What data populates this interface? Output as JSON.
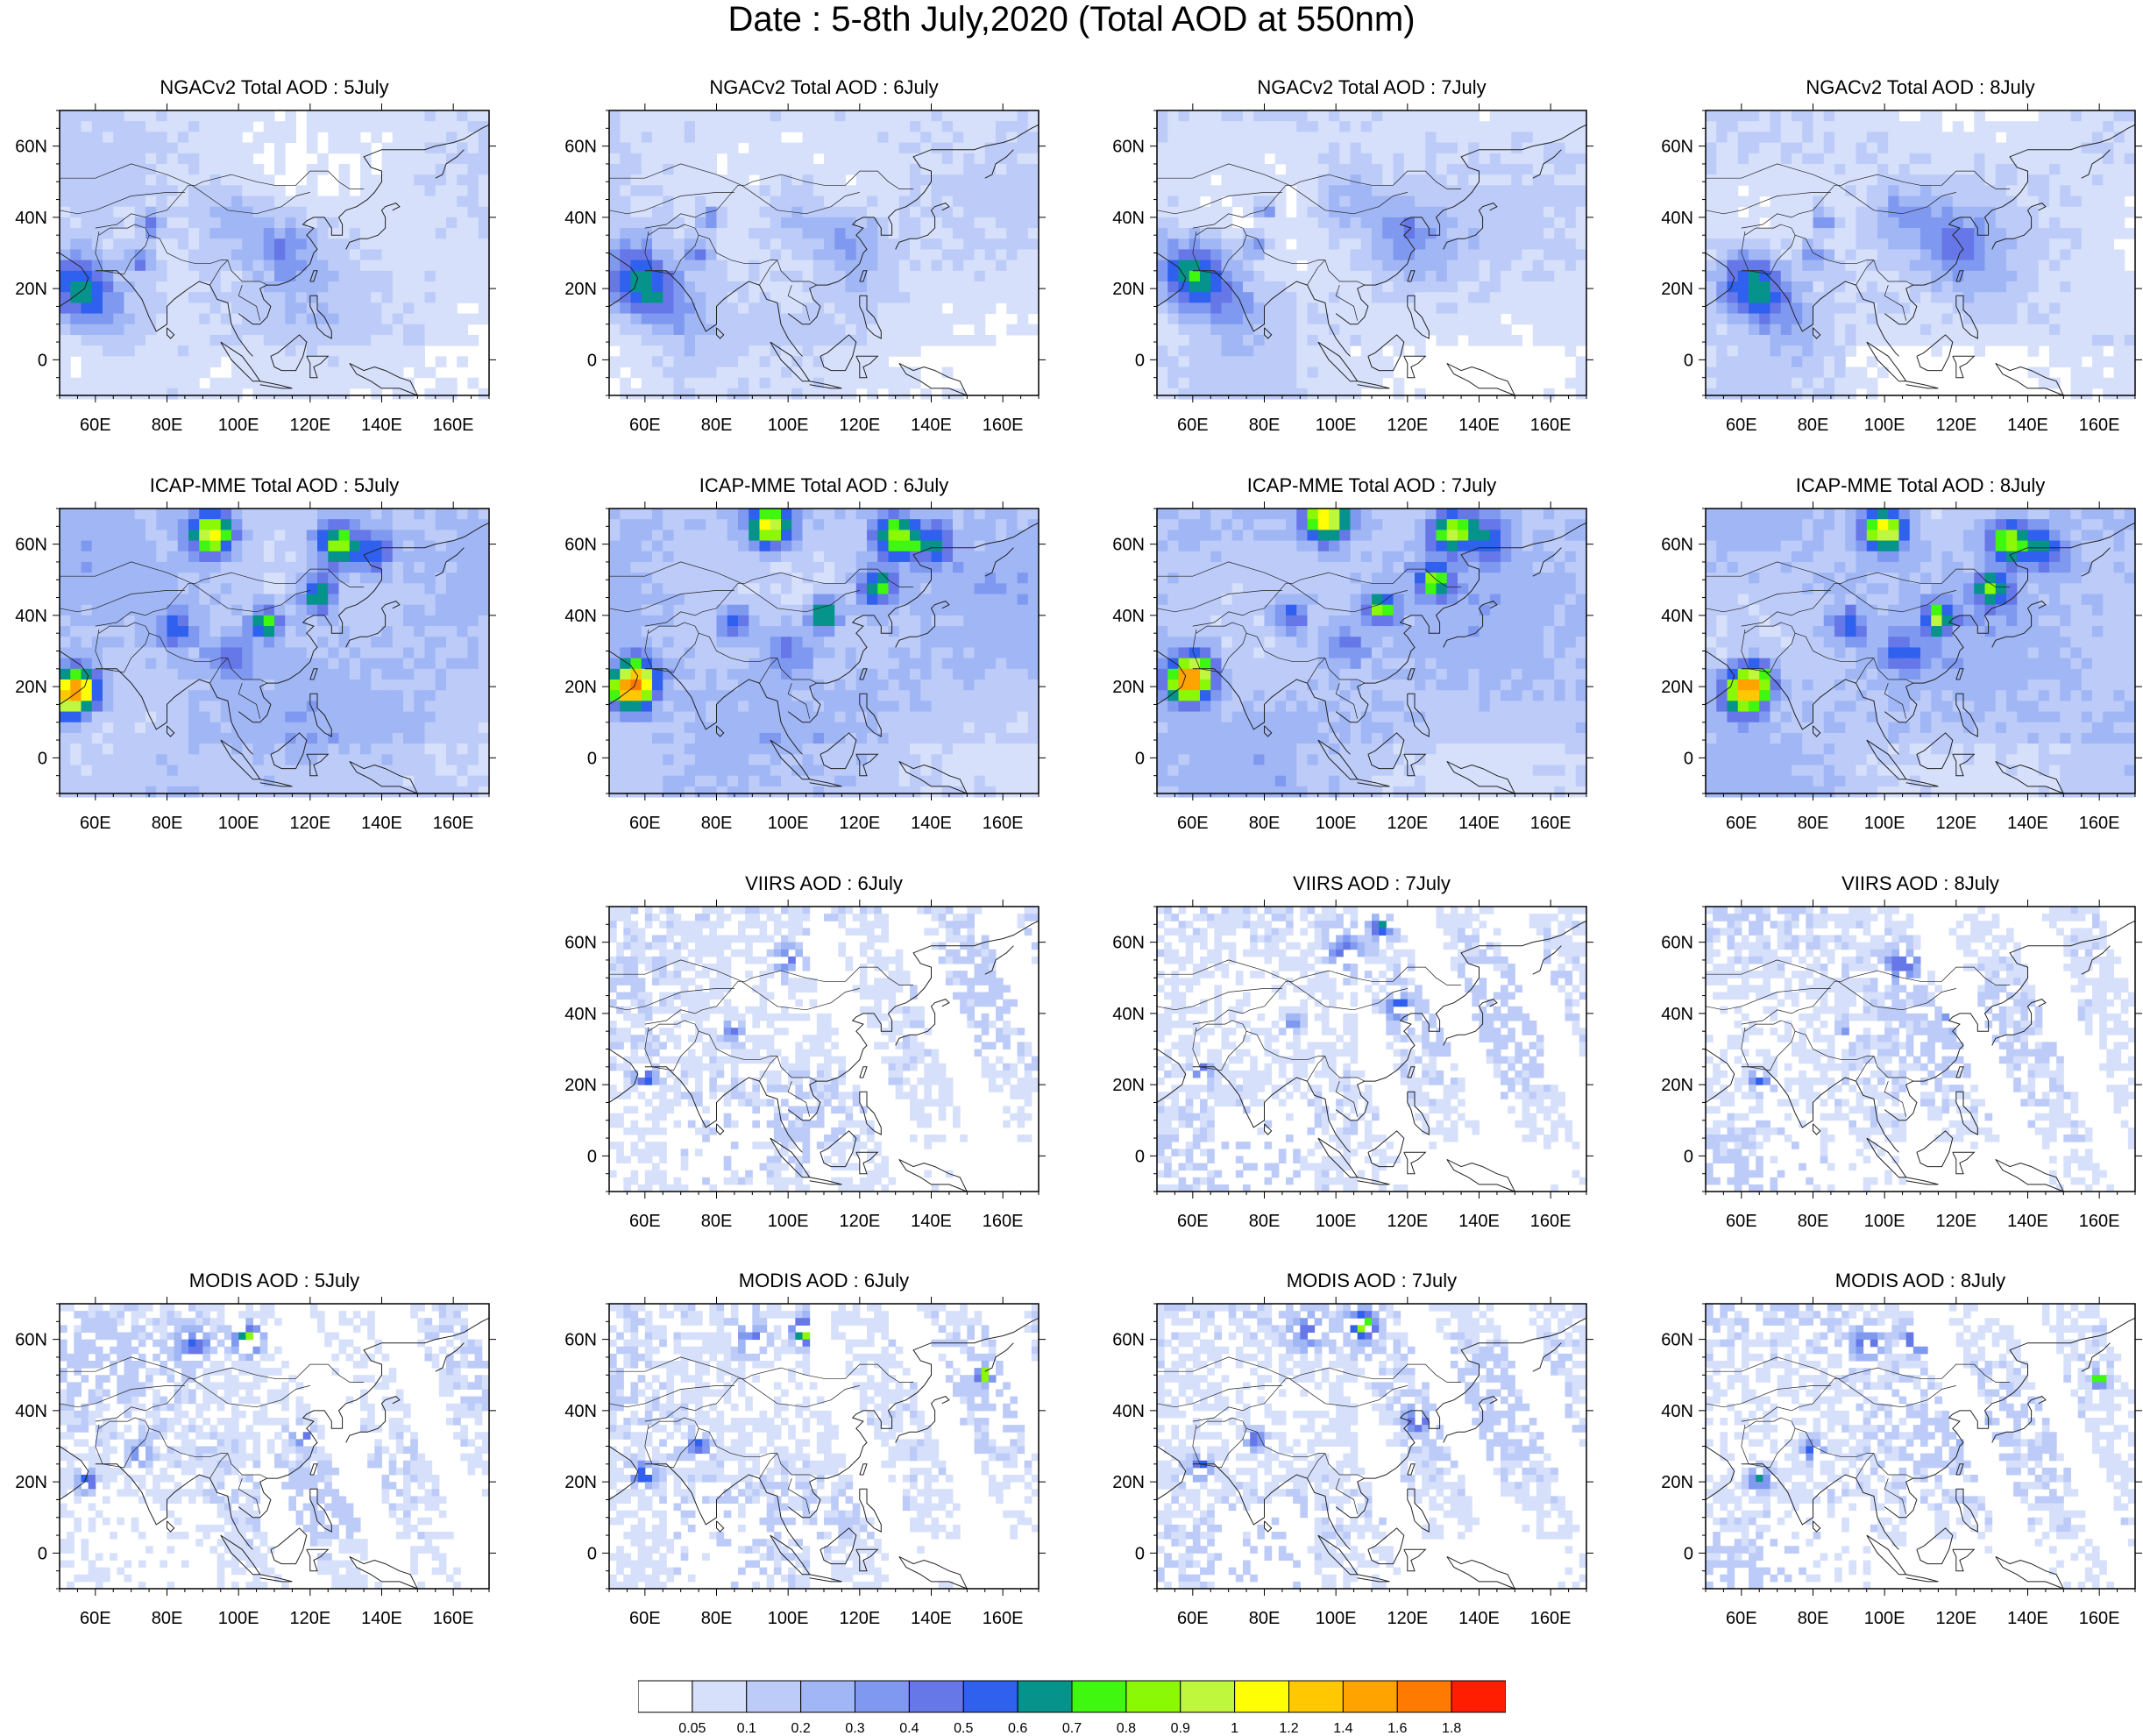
{
  "title": "Date : 5-8th July,2020 (Total AOD at 550nm)",
  "panels": [
    {
      "title": "NGACv2 Total AOD : 5July",
      "product": "NGACv2",
      "day": 5
    },
    {
      "title": "NGACv2 Total AOD : 6July",
      "product": "NGACv2",
      "day": 6
    },
    {
      "title": "NGACv2 Total AOD : 7July",
      "product": "NGACv2",
      "day": 7
    },
    {
      "title": "NGACv2 Total AOD : 8July",
      "product": "NGACv2",
      "day": 8
    },
    {
      "title": "ICAP-MME Total AOD : 5July",
      "product": "ICAP-MME",
      "day": 5
    },
    {
      "title": "ICAP-MME Total AOD : 6July",
      "product": "ICAP-MME",
      "day": 6
    },
    {
      "title": "ICAP-MME Total AOD : 7July",
      "product": "ICAP-MME",
      "day": 7
    },
    {
      "title": "ICAP-MME Total AOD : 8July",
      "product": "ICAP-MME",
      "day": 8
    },
    null,
    {
      "title": "VIIRS AOD : 6July",
      "product": "VIIRS",
      "day": 6
    },
    {
      "title": "VIIRS AOD : 7July",
      "product": "VIIRS",
      "day": 7
    },
    {
      "title": "VIIRS AOD : 8July",
      "product": "VIIRS",
      "day": 8
    },
    {
      "title": "MODIS AOD : 5July",
      "product": "MODIS",
      "day": 5
    },
    {
      "title": "MODIS AOD : 6July",
      "product": "MODIS",
      "day": 6
    },
    {
      "title": "MODIS AOD : 7July",
      "product": "MODIS",
      "day": 7
    },
    {
      "title": "MODIS AOD : 8July",
      "product": "MODIS",
      "day": 8
    }
  ],
  "map": {
    "lon_range": [
      50,
      170
    ],
    "lat_range": [
      -10,
      70
    ],
    "lon_ticks": [
      60,
      80,
      100,
      120,
      140,
      160
    ],
    "lon_tick_labels": [
      "60E",
      "80E",
      "100E",
      "120E",
      "140E",
      "160E"
    ],
    "lat_ticks": [
      0,
      20,
      40,
      60
    ],
    "lat_tick_labels": [
      "0",
      "20N",
      "40N",
      "60N"
    ]
  },
  "colorbar": {
    "labels": [
      "0.05",
      "0.1",
      "0.2",
      "0.3",
      "0.4",
      "0.5",
      "0.6",
      "0.7",
      "0.8",
      "0.9",
      "1",
      "1.2",
      "1.4",
      "1.6",
      "1.8"
    ],
    "colors": [
      "#ffffff",
      "#d6e0fb",
      "#bccbf8",
      "#a0b6f5",
      "#8099f0",
      "#6677e8",
      "#2f60ee",
      "#06938b",
      "#3ff70f",
      "#8bf806",
      "#bff73d",
      "#fffe05",
      "#ffc800",
      "#ffa300",
      "#ff7a00",
      "#ff1e00"
    ]
  }
}
